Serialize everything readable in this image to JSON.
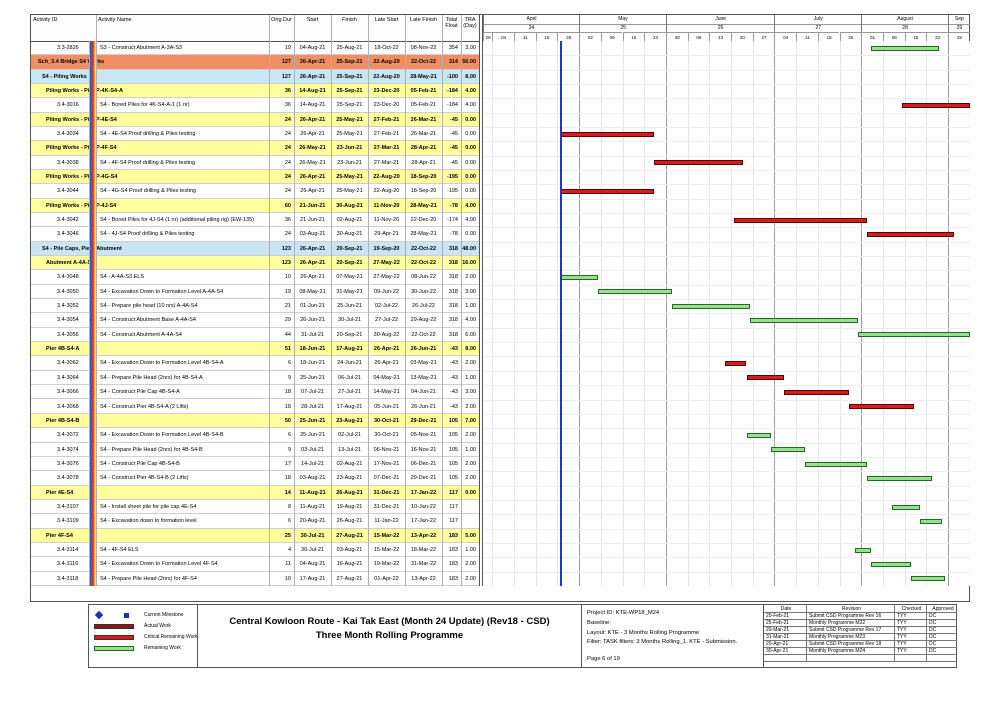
{
  "colors": {
    "group1_band": "#F28E64",
    "group2_band": "#C9E6F4",
    "group3_band": "#FFFF9C",
    "critical_bar": "#DB1B1B",
    "remaining_fill": "#9BDE92",
    "remaining_border": "#1C6E1C",
    "actual_work": "#8B1A1A",
    "milestone_blue": "#1F2FB4",
    "data_date_line": "#2233CC",
    "edge_stripes": [
      "#66CCDD",
      "#3355CC",
      "#CC3333",
      "#33AA33",
      "#FF9933",
      "#EEEE77"
    ]
  },
  "chart_data": {
    "type": "table",
    "title": "Three Month Rolling Programme Gantt",
    "columns": [
      "Activity ID",
      "Activity Name",
      "Orig Dur",
      "Start",
      "Finish",
      "Late Start",
      "Late Finish",
      "Total\nFloat",
      "TRA\n(Day)"
    ],
    "timeline": {
      "data_date": "2021-04-26",
      "months": [
        {
          "label": "April",
          "num": "24",
          "from": "2021-03-28",
          "to": "2021-05-02"
        },
        {
          "label": "May",
          "num": "25",
          "from": "2021-05-02",
          "to": "2021-05-30"
        },
        {
          "label": "June",
          "num": "26",
          "from": "2021-05-30",
          "to": "2021-07-04"
        },
        {
          "label": "July",
          "num": "27",
          "from": "2021-07-04",
          "to": "2021-08-01"
        },
        {
          "label": "August",
          "num": "28",
          "from": "2021-08-01",
          "to": "2021-08-29"
        },
        {
          "label": "Sep",
          "num": "29",
          "from": "2021-08-29",
          "to": "2021-09-05"
        }
      ],
      "weeks": [
        {
          "label": "28",
          "date": "2021-03-28"
        },
        {
          "label": "04",
          "date": "2021-04-04"
        },
        {
          "label": "11",
          "date": "2021-04-11"
        },
        {
          "label": "18",
          "date": "2021-04-18"
        },
        {
          "label": "25",
          "date": "2021-04-25"
        },
        {
          "label": "02",
          "date": "2021-05-02"
        },
        {
          "label": "09",
          "date": "2021-05-09"
        },
        {
          "label": "16",
          "date": "2021-05-16"
        },
        {
          "label": "23",
          "date": "2021-05-23"
        },
        {
          "label": "30",
          "date": "2021-05-30"
        },
        {
          "label": "06",
          "date": "2021-06-06"
        },
        {
          "label": "13",
          "date": "2021-06-13"
        },
        {
          "label": "20",
          "date": "2021-06-20"
        },
        {
          "label": "27",
          "date": "2021-06-27"
        },
        {
          "label": "04",
          "date": "2021-07-04"
        },
        {
          "label": "11",
          "date": "2021-07-11"
        },
        {
          "label": "18",
          "date": "2021-07-18"
        },
        {
          "label": "25",
          "date": "2021-07-25"
        },
        {
          "label": "01",
          "date": "2021-08-01"
        },
        {
          "label": "08",
          "date": "2021-08-08"
        },
        {
          "label": "15",
          "date": "2021-08-15"
        },
        {
          "label": "22",
          "date": "2021-08-22"
        },
        {
          "label": "29",
          "date": "2021-08-29"
        }
      ]
    },
    "rows": [
      {
        "t": "task",
        "id": "3.3-2826",
        "name": "S3 - Construct Abutment A-3A-S3",
        "dur": "19",
        "start": "04-Aug-21",
        "finish": "25-Aug-21",
        "ls": "18-Oct-22",
        "lf": "08-Nov-22",
        "tf": "354",
        "tra": "3.00"
      },
      {
        "t": "g1",
        "id": "",
        "name": "Sch_3.4 Bridge S4 Works",
        "dur": "127",
        "start": "26-Apr-21",
        "finish": "25-Sep-21",
        "ls": "22-Aug-20",
        "lf": "22-Oct-22",
        "tf": "314",
        "tra": "56.00"
      },
      {
        "t": "g2",
        "id": "",
        "name": "S4 - Piling Works",
        "dur": "127",
        "start": "26-Apr-21",
        "finish": "25-Sep-21",
        "ls": "22-Aug-20",
        "lf": "28-May-21",
        "tf": "-100",
        "tra": "8.00"
      },
      {
        "t": "g3",
        "id": "",
        "name": "Piling Works - Pier P-4K-S4-A",
        "dur": "36",
        "start": "14-Aug-21",
        "finish": "25-Sep-21",
        "ls": "23-Dec-20",
        "lf": "05-Feb-21",
        "tf": "-184",
        "tra": "4.00"
      },
      {
        "t": "task",
        "id": "3.4-3016",
        "name": "S4 - Bored Piles for 4K-S4-A-1 (1 nr)",
        "dur": "36",
        "start": "14-Aug-21",
        "finish": "25-Sep-21",
        "ls": "23-Dec-20",
        "lf": "05-Feb-21",
        "tf": "-184",
        "tra": "4.00"
      },
      {
        "t": "g3",
        "id": "",
        "name": "Piling Works - Pier P-4E-S4",
        "dur": "24",
        "start": "26-Apr-21",
        "finish": "25-May-21",
        "ls": "27-Feb-21",
        "lf": "26-Mar-21",
        "tf": "-45",
        "tra": "0.00"
      },
      {
        "t": "task",
        "id": "3.4-3034",
        "name": "S4 - 4E-S4  Proof drilling & Piles testing",
        "dur": "24",
        "start": "26-Apr-21",
        "finish": "25-May-21",
        "ls": "27-Feb-21",
        "lf": "26-Mar-21",
        "tf": "-45",
        "tra": "0.00"
      },
      {
        "t": "g3",
        "id": "",
        "name": "Piling Works - Pier P-4F-S4",
        "dur": "24",
        "start": "26-May-21",
        "finish": "23-Jun-21",
        "ls": "27-Mar-21",
        "lf": "28-Apr-21",
        "tf": "-45",
        "tra": "0.00"
      },
      {
        "t": "task",
        "id": "3.4-3038",
        "name": "S4 - 4F-S4 Proof drilling & Piles testing",
        "dur": "24",
        "start": "26-May-21",
        "finish": "23-Jun-21",
        "ls": "27-Mar-21",
        "lf": "28-Apr-21",
        "tf": "-45",
        "tra": "0.00"
      },
      {
        "t": "g3",
        "id": "",
        "name": "Piling Works - Pier P-4G-S4",
        "dur": "24",
        "start": "26-Apr-21",
        "finish": "25-May-21",
        "ls": "22-Aug-20",
        "lf": "18-Sep-20",
        "tf": "-195",
        "tra": "0.00"
      },
      {
        "t": "task",
        "id": "3.4-3044",
        "name": "S4 - 4G-S4 Proof drilling & Piles testing",
        "dur": "24",
        "start": "26-Apr-21",
        "finish": "25-May-21",
        "ls": "22-Aug-20",
        "lf": "18-Sep-20",
        "tf": "-195",
        "tra": "0.00"
      },
      {
        "t": "g3",
        "id": "",
        "name": "Piling Works - Pier P-4J-S4",
        "dur": "60",
        "start": "21-Jun-21",
        "finish": "30-Aug-21",
        "ls": "11-Nov-20",
        "lf": "28-May-21",
        "tf": "-78",
        "tra": "4.00"
      },
      {
        "t": "task",
        "id": "3.4-3042",
        "name": "S4 - Bored Piles for 4J-S4 (1 nr) (additional piling rig) (EW-135)",
        "dur": "36",
        "start": "21-Jun-21",
        "finish": "02-Aug-21",
        "ls": "11-Nov-20",
        "lf": "22-Dec-20",
        "tf": "-174",
        "tra": "4.00"
      },
      {
        "t": "task",
        "id": "3.4-3046",
        "name": "S4 - 4J-S4 Proof drilling & Piles testing",
        "dur": "24",
        "start": "03-Aug-21",
        "finish": "30-Aug-21",
        "ls": "29-Apr-21",
        "lf": "28-May-21",
        "tf": "-78",
        "tra": "0.00"
      },
      {
        "t": "g2",
        "id": "",
        "name": "S4 - Pile Caps, Pier / Abutment",
        "dur": "123",
        "start": "26-Apr-21",
        "finish": "20-Sep-21",
        "ls": "19-Sep-20",
        "lf": "22-Oct-22",
        "tf": "318",
        "tra": "48.00"
      },
      {
        "t": "g3",
        "id": "",
        "name": "Abutment  A-4A-S4",
        "dur": "123",
        "start": "26-Apr-21",
        "finish": "20-Sep-21",
        "ls": "27-May-22",
        "lf": "22-Oct-22",
        "tf": "318",
        "tra": "16.00"
      },
      {
        "t": "task",
        "id": "3.4-3048",
        "name": "S4 - A-4A-S3 ELS",
        "dur": "10",
        "start": "26-Apr-21",
        "finish": "07-May-21",
        "ls": "27-May-22",
        "lf": "08-Jun-22",
        "tf": "318",
        "tra": "2.00"
      },
      {
        "t": "task",
        "id": "3.4-3050",
        "name": "S4 - Excavation Down to Formation Level A-4A-S4",
        "dur": "19",
        "start": "08-May-21",
        "finish": "31-May-21",
        "ls": "09-Jun-22",
        "lf": "30-Jun-22",
        "tf": "318",
        "tra": "3.00"
      },
      {
        "t": "task",
        "id": "3.4-3052",
        "name": "S4 - Prepare pile head (10 nrs) A-4A-S4",
        "dur": "21",
        "start": "01-Jun-21",
        "finish": "25-Jun-21",
        "ls": "02-Jul-22",
        "lf": "26-Jul-22",
        "tf": "318",
        "tra": "1.00"
      },
      {
        "t": "task",
        "id": "3.4-3054",
        "name": "S4 - Construct Abutment Base A-4A-S4",
        "dur": "29",
        "start": "26-Jun-21",
        "finish": "30-Jul-21",
        "ls": "27-Jul-22",
        "lf": "29-Aug-22",
        "tf": "318",
        "tra": "4.00"
      },
      {
        "t": "task",
        "id": "3.4-3056",
        "name": "S4 - Construct Abutment  A-4A-S4",
        "dur": "44",
        "start": "31-Jul-21",
        "finish": "20-Sep-21",
        "ls": "30-Aug-22",
        "lf": "22-Oct-22",
        "tf": "318",
        "tra": "6.00"
      },
      {
        "t": "g3",
        "id": "",
        "name": "Pier 4B-S4-A",
        "dur": "51",
        "start": "18-Jun-21",
        "finish": "17-Aug-21",
        "ls": "26-Apr-21",
        "lf": "26-Jun-21",
        "tf": "-43",
        "tra": "8.00"
      },
      {
        "t": "task",
        "id": "3.4-3062",
        "name": "S4 - Excavation Down to Formation Level 4B-S4-A",
        "dur": "6",
        "start": "18-Jun-21",
        "finish": "24-Jun-21",
        "ls": "26-Apr-21",
        "lf": "03-May-21",
        "tf": "-43",
        "tra": "2.00"
      },
      {
        "t": "task",
        "id": "3.4-3064",
        "name": "S4 - Prepare Pile Head (2nrs) for 4B-S4-A",
        "dur": "9",
        "start": "25-Jun-21",
        "finish": "06-Jul-21",
        "ls": "04-May-21",
        "lf": "13-May-21",
        "tf": "-43",
        "tra": "1.00"
      },
      {
        "t": "task",
        "id": "3.4-3066",
        "name": "S4 - Construct Pile Cap 4B-S4-A",
        "dur": "18",
        "start": "07-Jul-21",
        "finish": "27-Jul-21",
        "ls": "14-May-21",
        "lf": "04-Jun-21",
        "tf": "-43",
        "tra": "3.00"
      },
      {
        "t": "task",
        "id": "3.4-3068",
        "name": "S4 - Construct Pier 4B-S4-A (2 Lifts)",
        "dur": "18",
        "start": "28-Jul-21",
        "finish": "17-Aug-21",
        "ls": "05-Jun-21",
        "lf": "26-Jun-21",
        "tf": "-43",
        "tra": "2.00"
      },
      {
        "t": "g3",
        "id": "",
        "name": "Pier 4B-S4-B",
        "dur": "50",
        "start": "25-Jun-21",
        "finish": "23-Aug-21",
        "ls": "30-Oct-21",
        "lf": "29-Dec-21",
        "tf": "105",
        "tra": "7.00"
      },
      {
        "t": "task",
        "id": "3.4-3072",
        "name": "S4 - Excavation Down to Formation Level 4B-S4-B",
        "dur": "6",
        "start": "25-Jun-21",
        "finish": "02-Jul-21",
        "ls": "30-Oct-21",
        "lf": "05-Nov-21",
        "tf": "105",
        "tra": "2.00"
      },
      {
        "t": "task",
        "id": "3.4-3074",
        "name": "S4 - Prepare Pile Head (2nrs) for 4B-S4-B",
        "dur": "9",
        "start": "03-Jul-21",
        "finish": "13-Jul-21",
        "ls": "06-Nov-21",
        "lf": "16-Nov-21",
        "tf": "105",
        "tra": "1.00"
      },
      {
        "t": "task",
        "id": "3.4-3076",
        "name": "S4 - Construct Pile Cap 4B-S4-B",
        "dur": "17",
        "start": "14-Jul-21",
        "finish": "02-Aug-21",
        "ls": "17-Nov-21",
        "lf": "06-Dec-21",
        "tf": "105",
        "tra": "2.00"
      },
      {
        "t": "task",
        "id": "3.4-3078",
        "name": "S4 - Construct Pier 4B-S4-B (2 Lifts)",
        "dur": "18",
        "start": "03-Aug-21",
        "finish": "23-Aug-21",
        "ls": "07-Dec-21",
        "lf": "29-Dec-21",
        "tf": "105",
        "tra": "2.00"
      },
      {
        "t": "g3",
        "id": "",
        "name": "Pier 4E-S4",
        "dur": "14",
        "start": "11-Aug-21",
        "finish": "26-Aug-21",
        "ls": "31-Dec-21",
        "lf": "17-Jan-22",
        "tf": "117",
        "tra": "0.00"
      },
      {
        "t": "task",
        "id": "3.4-3107",
        "name": "S4 - Install sheet pile for pile cap 4E-S4",
        "dur": "8",
        "start": "11-Aug-21",
        "finish": "19-Aug-21",
        "ls": "31-Dec-21",
        "lf": "10-Jan-22",
        "tf": "117",
        "tra": ""
      },
      {
        "t": "task",
        "id": "3.4-3109",
        "name": "S4 - Excavation down to formation level",
        "dur": "6",
        "start": "20-Aug-21",
        "finish": "26-Aug-21",
        "ls": "11-Jan-22",
        "lf": "17-Jan-22",
        "tf": "117",
        "tra": ""
      },
      {
        "t": "g3",
        "id": "",
        "name": "Pier 4F-S4",
        "dur": "25",
        "start": "30-Jul-21",
        "finish": "27-Aug-21",
        "ls": "15-Mar-22",
        "lf": "13-Apr-22",
        "tf": "183",
        "tra": "5.00"
      },
      {
        "t": "task",
        "id": "3.4-3114",
        "name": "S4 - 4F-S4 ELS",
        "dur": "4",
        "start": "30-Jul-21",
        "finish": "03-Aug-21",
        "ls": "15-Mar-22",
        "lf": "18-Mar-22",
        "tf": "183",
        "tra": "1.00"
      },
      {
        "t": "task",
        "id": "3.4-3116",
        "name": "S4 - Excavation Down to Formation Level 4F-S4",
        "dur": "11",
        "start": "04-Aug-21",
        "finish": "16-Aug-21",
        "ls": "19-Mar-22",
        "lf": "31-Mar-22",
        "tf": "183",
        "tra": "2.00"
      },
      {
        "t": "task",
        "id": "3.4-3118",
        "name": "S4 - Prepare Pile Head (2nrs) for 4F-S4",
        "dur": "10",
        "start": "17-Aug-21",
        "finish": "27-Aug-21",
        "ls": "01-Apr-22",
        "lf": "13-Apr-22",
        "tf": "183",
        "tra": "2.00"
      }
    ]
  },
  "legend": {
    "items": [
      {
        "icon": "milestone-diamond",
        "label": "Current Milestone"
      },
      {
        "icon": "actual-bar",
        "label": "Actual Work"
      },
      {
        "icon": "critical-bar",
        "label": "Critical Remaining Work"
      },
      {
        "icon": "remaining-bar",
        "label": "Remaining Work"
      }
    ]
  },
  "title_block": {
    "line1": "Central Kowloon Route - Kai Tak East (Month 24 Update) (Rev18 - CSD)",
    "line2": "Three Month Rolling Programme"
  },
  "info_block": {
    "project_id": "Project ID: KTE-WP18_M24",
    "baseline": "Baseline:",
    "layout": "Layout: KTE - 3 Months Rolling Programme",
    "filter": "Filter: TASK filters: 3 Months Rolling_1, KTE - Submission.",
    "page": "Page 6 of 19"
  },
  "revisions": {
    "headers": [
      "Date",
      "Revision",
      "Checked",
      "Approved"
    ],
    "rows": [
      [
        "20-Feb-21",
        "Submit CSD Programme Rev 16",
        "TYY",
        "DC"
      ],
      [
        "25-Feb-21",
        "Monthly Programme M22",
        "TYY",
        "DC"
      ],
      [
        "20-Mar-21",
        "Submit CSD Programme Rev 17",
        "TYY",
        "DC"
      ],
      [
        "31-Mar-21",
        "Monthly Programme M23",
        "TYY",
        "DC"
      ],
      [
        "20-Apr-21",
        "Submit CSD Programme Rev 18",
        "TYY",
        "DC"
      ],
      [
        "30-Apr-21",
        "Monthly Programme M24",
        "TYY",
        "DC"
      ],
      [
        "",
        "",
        "",
        ""
      ]
    ]
  }
}
